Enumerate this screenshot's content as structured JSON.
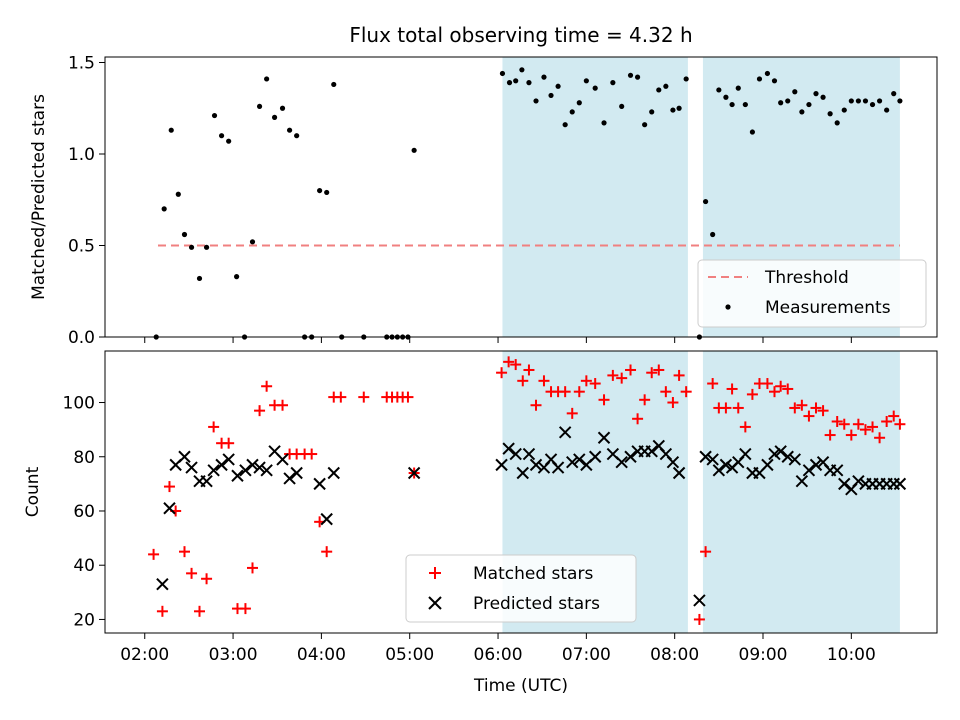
{
  "chart_data": [
    {
      "type": "scatter",
      "title": "Flux total observing time = 4.32 h",
      "xlabel": "",
      "ylabel": "Matched/Predicted stars",
      "xlim": [
        1.55,
        10.97
      ],
      "ylim": [
        0,
        1.53
      ],
      "yticks": [
        0.0,
        0.5,
        1.0,
        1.5
      ],
      "ytick_labels": [
        "0.0",
        "0.5",
        "1.0",
        "1.5"
      ],
      "shaded_time_spans": [
        [
          6.05,
          8.15
        ],
        [
          8.32,
          10.55
        ]
      ],
      "shade_color": "#add8e6",
      "threshold": {
        "name": "Threshold",
        "value": 0.5,
        "x_range": [
          2.15,
          10.55
        ],
        "color": "#f08080"
      },
      "legend": {
        "placement": "lower-right",
        "entries": [
          "Threshold",
          "Measurements"
        ]
      },
      "series": [
        {
          "name": "Measurements",
          "color": "#000000",
          "x": [
            2.13,
            2.22,
            2.3,
            2.38,
            2.45,
            2.53,
            2.62,
            2.7,
            2.79,
            2.87,
            2.95,
            3.04,
            3.13,
            3.22,
            3.3,
            3.38,
            3.47,
            3.56,
            3.64,
            3.72,
            3.81,
            3.89,
            3.98,
            4.06,
            4.14,
            4.23,
            4.48,
            4.74,
            4.8,
            4.86,
            4.92,
            4.98,
            5.05,
            6.05,
            6.13,
            6.2,
            6.27,
            6.35,
            6.43,
            6.52,
            6.6,
            6.68,
            6.76,
            6.84,
            6.92,
            7.0,
            7.1,
            7.2,
            7.3,
            7.4,
            7.5,
            7.58,
            7.66,
            7.74,
            7.82,
            7.9,
            7.98,
            8.05,
            8.13,
            8.28,
            8.35,
            8.43,
            8.5,
            8.58,
            8.65,
            8.72,
            8.8,
            8.88,
            8.96,
            9.05,
            9.13,
            9.2,
            9.28,
            9.36,
            9.44,
            9.52,
            9.6,
            9.68,
            9.76,
            9.84,
            9.92,
            10.0,
            10.08,
            10.16,
            10.24,
            10.32,
            10.4,
            10.48,
            10.55
          ],
          "y": [
            0.0,
            0.7,
            1.13,
            0.78,
            0.56,
            0.49,
            0.32,
            0.49,
            1.21,
            1.1,
            1.07,
            0.33,
            0.0,
            0.52,
            1.26,
            1.41,
            1.2,
            1.25,
            1.13,
            1.1,
            0.0,
            0.0,
            0.8,
            0.79,
            1.38,
            0.0,
            0.0,
            0.0,
            0.0,
            0.0,
            0.0,
            0.0,
            1.02,
            1.44,
            1.39,
            1.4,
            1.46,
            1.39,
            1.29,
            1.42,
            1.32,
            1.37,
            1.16,
            1.23,
            1.28,
            1.4,
            1.36,
            1.17,
            1.39,
            1.26,
            1.43,
            1.42,
            1.16,
            1.23,
            1.35,
            1.37,
            1.24,
            1.25,
            1.41,
            0.0,
            0.74,
            0.56,
            1.35,
            1.31,
            1.27,
            1.36,
            1.27,
            1.12,
            1.41,
            1.44,
            1.4,
            1.28,
            1.29,
            1.34,
            1.23,
            1.27,
            1.33,
            1.31,
            1.22,
            1.17,
            1.24,
            1.29,
            1.29,
            1.29,
            1.27,
            1.29,
            1.24,
            1.33,
            1.29
          ]
        }
      ]
    },
    {
      "type": "scatter",
      "title": "",
      "xlabel": "Time (UTC)",
      "ylabel": "Count",
      "xlim": [
        1.55,
        10.97
      ],
      "ylim": [
        15,
        119
      ],
      "yticks": [
        20,
        40,
        60,
        80,
        100
      ],
      "ytick_labels": [
        "20",
        "40",
        "60",
        "80",
        "100"
      ],
      "xticks": [
        2,
        3,
        4,
        5,
        6,
        7,
        8,
        9,
        10
      ],
      "xtick_labels": [
        "02:00",
        "03:00",
        "04:00",
        "05:00",
        "06:00",
        "07:00",
        "08:00",
        "09:00",
        "10:00"
      ],
      "shaded_time_spans": [
        [
          6.05,
          8.15
        ],
        [
          8.32,
          10.55
        ]
      ],
      "shade_color": "#add8e6",
      "legend": {
        "placement": "lower-center",
        "entries": [
          "Matched stars",
          "Predicted stars"
        ]
      },
      "series": [
        {
          "name": "Matched stars",
          "marker": "+",
          "color": "#ff0000",
          "x": [
            2.1,
            2.2,
            2.28,
            2.35,
            2.45,
            2.53,
            2.62,
            2.7,
            2.78,
            2.87,
            2.95,
            3.05,
            3.14,
            3.22,
            3.3,
            3.38,
            3.47,
            3.56,
            3.64,
            3.72,
            3.81,
            3.89,
            3.98,
            4.06,
            4.14,
            4.22,
            4.48,
            4.74,
            4.8,
            4.86,
            4.92,
            4.98,
            5.05,
            6.04,
            6.12,
            6.2,
            6.28,
            6.35,
            6.43,
            6.52,
            6.6,
            6.68,
            6.76,
            6.84,
            6.92,
            7.0,
            7.1,
            7.2,
            7.3,
            7.4,
            7.5,
            7.58,
            7.66,
            7.74,
            7.82,
            7.9,
            7.98,
            8.05,
            8.13,
            8.28,
            8.35,
            8.43,
            8.5,
            8.58,
            8.65,
            8.72,
            8.8,
            8.88,
            8.96,
            9.05,
            9.13,
            9.2,
            9.28,
            9.36,
            9.44,
            9.52,
            9.6,
            9.68,
            9.76,
            9.84,
            9.92,
            10.0,
            10.08,
            10.16,
            10.24,
            10.32,
            10.4,
            10.48,
            10.55
          ],
          "y": [
            44,
            23,
            69,
            60,
            45,
            37,
            23,
            35,
            91,
            85,
            85,
            24,
            24,
            39,
            97,
            106,
            99,
            99,
            81,
            81,
            81,
            81,
            56,
            45,
            102,
            102,
            102,
            102,
            102,
            102,
            102,
            102,
            74,
            111,
            115,
            114,
            108,
            112,
            99,
            108,
            104,
            104,
            104,
            96,
            104,
            108,
            107,
            101,
            110,
            109,
            112,
            94,
            101,
            111,
            112,
            104,
            100,
            110,
            104,
            20,
            45,
            107,
            98,
            98,
            105,
            98,
            91,
            103,
            107,
            107,
            104,
            106,
            105,
            98,
            99,
            95,
            98,
            97,
            88,
            93,
            92,
            88,
            92,
            90,
            91,
            87,
            93,
            95,
            92
          ]
        },
        {
          "name": "Predicted stars",
          "marker": "x",
          "color": "#000000",
          "x": [
            2.2,
            2.28,
            2.35,
            2.45,
            2.53,
            2.62,
            2.7,
            2.78,
            2.87,
            2.95,
            3.05,
            3.14,
            3.22,
            3.3,
            3.38,
            3.47,
            3.56,
            3.64,
            3.72,
            3.98,
            4.06,
            4.14,
            5.05,
            6.04,
            6.12,
            6.2,
            6.28,
            6.35,
            6.43,
            6.52,
            6.6,
            6.68,
            6.76,
            6.84,
            6.92,
            7.0,
            7.1,
            7.2,
            7.3,
            7.4,
            7.5,
            7.58,
            7.66,
            7.74,
            7.82,
            7.9,
            7.98,
            8.05,
            8.28,
            8.35,
            8.43,
            8.5,
            8.58,
            8.65,
            8.72,
            8.8,
            8.88,
            8.96,
            9.05,
            9.13,
            9.2,
            9.28,
            9.36,
            9.44,
            9.52,
            9.6,
            9.68,
            9.76,
            9.84,
            9.92,
            10.0,
            10.08,
            10.16,
            10.24,
            10.32,
            10.4,
            10.48,
            10.55
          ],
          "y": [
            33,
            61,
            77,
            80,
            76,
            71,
            71,
            75,
            77,
            79,
            73,
            75,
            77,
            76,
            75,
            82,
            79,
            72,
            74,
            70,
            57,
            74,
            74,
            77,
            83,
            81,
            74,
            81,
            77,
            76,
            79,
            76,
            89,
            78,
            79,
            77,
            80,
            87,
            81,
            78,
            80,
            82,
            82,
            82,
            84,
            81,
            78,
            74,
            27,
            80,
            79,
            75,
            77,
            76,
            78,
            81,
            74,
            74,
            77,
            81,
            82,
            80,
            79,
            71,
            75,
            77,
            78,
            75,
            75,
            70,
            68,
            71,
            70,
            70,
            70,
            70,
            70,
            70
          ]
        }
      ]
    }
  ]
}
